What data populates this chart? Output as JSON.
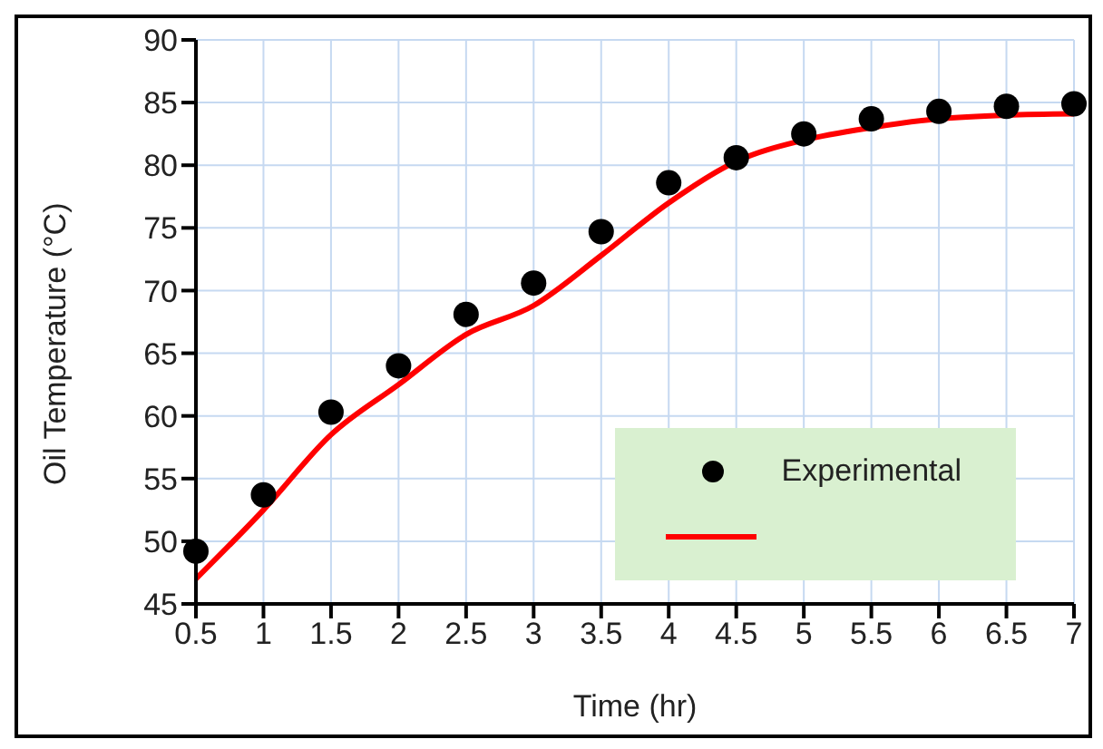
{
  "chart_data": {
    "type": "line",
    "xlabel": "Time (hr)",
    "ylabel": "Oil Temperature (°C)",
    "categories": [
      "0.5",
      "1",
      "1.5",
      "2",
      "2.5",
      "3",
      "3.5",
      "4",
      "4.5",
      "5",
      "5.5",
      "6",
      "6.5",
      "7"
    ],
    "series": [
      {
        "name": "Experimental",
        "type": "scatter",
        "color": "#000000",
        "marker": "circle",
        "values": [
          49.2,
          53.7,
          60.3,
          64.0,
          68.1,
          70.6,
          74.7,
          78.6,
          80.6,
          82.5,
          83.7,
          84.3,
          84.7,
          84.9
        ]
      },
      {
        "color": "#ff0000",
        "line_style": "solid",
        "values": [
          47.0,
          52.5,
          58.5,
          62.5,
          66.5,
          68.8,
          72.8,
          77.0,
          80.3,
          82.0,
          83.0,
          83.7,
          84.0,
          84.1
        ]
      }
    ],
    "ylim": [
      45,
      90
    ],
    "yticks": [
      45,
      50,
      55,
      60,
      65,
      70,
      75,
      80,
      85,
      90
    ],
    "grid": true,
    "legend": "bottom right"
  }
}
